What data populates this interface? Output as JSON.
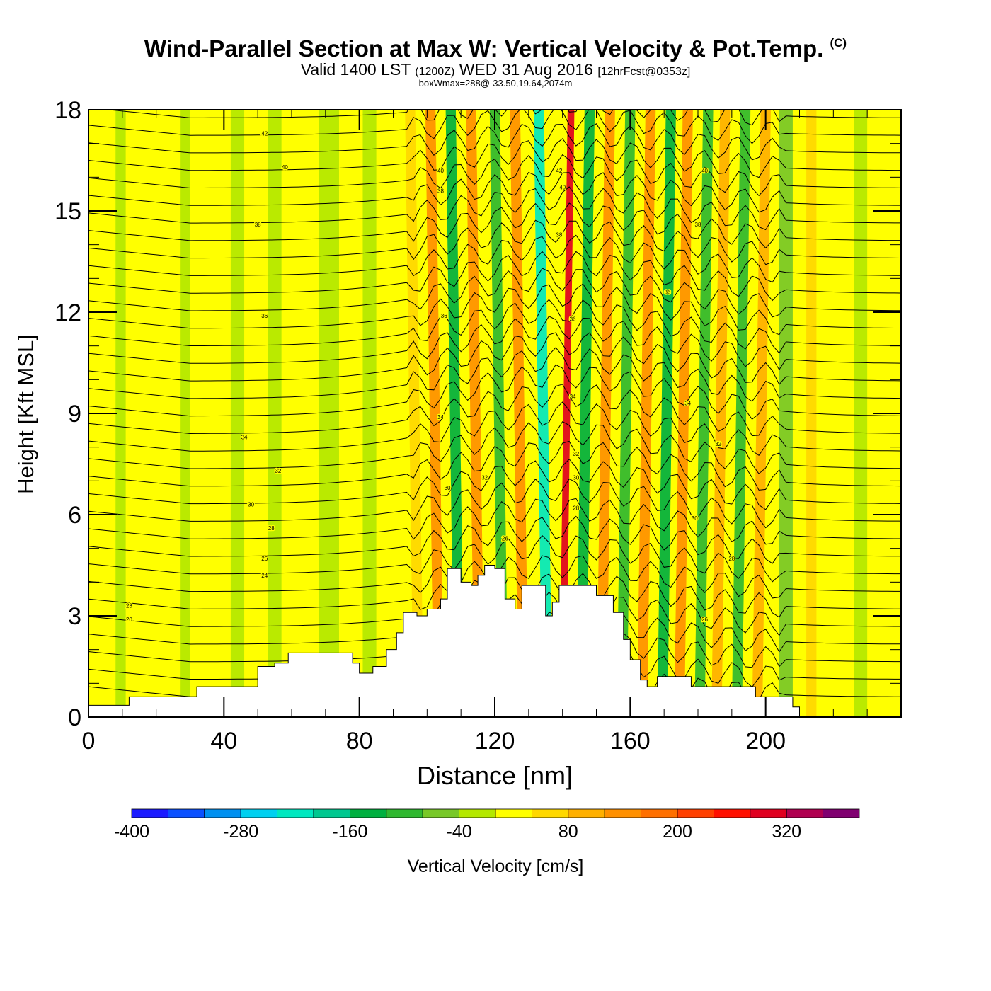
{
  "header": {
    "title": "Wind-Parallel Section at Max W: Vertical Velocity & Pot.Temp.",
    "copyright_mark": "(C)",
    "valid_prefix": "Valid 1400 LST",
    "utc": "(1200Z)",
    "valid_date": "WED 31 Aug 2016",
    "forecast": "[12hrFcst@0353z]",
    "box_info": "boxWmax=288@-33.50,19.64,2074m"
  },
  "chart_data": {
    "type": "heatmap",
    "title": "Wind-Parallel Section at Max W: Vertical Velocity & Pot.Temp.",
    "xlabel": "Distance [nm]",
    "ylabel": "Height [Kft MSL]",
    "xlim": [
      0,
      240
    ],
    "ylim": [
      0,
      18
    ],
    "x_ticks": [
      0,
      40,
      80,
      120,
      160,
      200
    ],
    "y_ticks": [
      0,
      3,
      6,
      9,
      12,
      15,
      18
    ],
    "colorbar": {
      "label": "Vertical Velocity [cm/s]",
      "min": -400,
      "max": 400,
      "step": 40,
      "tick_labels": [
        -400,
        -280,
        -160,
        -40,
        80,
        200,
        320
      ],
      "colors": [
        "#1a1aff",
        "#0a50ff",
        "#0090f0",
        "#00d0f0",
        "#00e8c0",
        "#00c890",
        "#00b040",
        "#30b830",
        "#78c828",
        "#b4e800",
        "#ffff00",
        "#ffd800",
        "#ffb000",
        "#ff9000",
        "#ff7000",
        "#ff4000",
        "#ff1000",
        "#e00020",
        "#b00050",
        "#800070"
      ]
    },
    "terrain": [
      [
        0,
        0.35
      ],
      [
        10,
        0.35
      ],
      [
        12,
        0.6
      ],
      [
        30,
        0.6
      ],
      [
        32,
        0.9
      ],
      [
        46,
        0.9
      ],
      [
        50,
        1.5
      ],
      [
        55,
        1.6
      ],
      [
        59,
        1.9
      ],
      [
        75,
        1.9
      ],
      [
        78,
        1.6
      ],
      [
        80,
        1.3
      ],
      [
        84,
        1.5
      ],
      [
        88,
        2.0
      ],
      [
        91,
        2.5
      ],
      [
        93,
        3.1
      ],
      [
        97,
        3.0
      ],
      [
        100,
        3.2
      ],
      [
        104,
        3.5
      ],
      [
        106,
        4.4
      ],
      [
        110,
        4.0
      ],
      [
        113,
        3.9
      ],
      [
        115,
        4.2
      ],
      [
        117,
        4.5
      ],
      [
        120,
        4.4
      ],
      [
        123,
        3.5
      ],
      [
        126,
        3.2
      ],
      [
        128,
        3.9
      ],
      [
        132,
        3.9
      ],
      [
        135,
        3.0
      ],
      [
        137,
        3.4
      ],
      [
        139,
        3.9
      ],
      [
        145,
        3.9
      ],
      [
        150,
        3.6
      ],
      [
        155,
        3.1
      ],
      [
        158,
        2.3
      ],
      [
        160,
        1.7
      ],
      [
        163,
        1.1
      ],
      [
        165,
        0.9
      ],
      [
        168,
        1.2
      ],
      [
        175,
        1.2
      ],
      [
        178,
        0.9
      ],
      [
        186,
        0.9
      ],
      [
        195,
        0.9
      ],
      [
        197,
        0.6
      ],
      [
        207,
        0.6
      ],
      [
        208,
        0.3
      ],
      [
        210,
        0.3
      ]
    ],
    "vertical_velocity_bands": [
      {
        "x": 8,
        "w": 3,
        "value": -20
      },
      {
        "x": 27,
        "w": 3,
        "value": -20
      },
      {
        "x": 42,
        "w": 4,
        "value": -40
      },
      {
        "x": 53,
        "w": 4,
        "value": -40
      },
      {
        "x": 68,
        "w": 6,
        "value": -40
      },
      {
        "x": 81,
        "w": 4,
        "value": -40
      },
      {
        "x": 96,
        "w": 3,
        "value": 60
      },
      {
        "x": 102,
        "w": 3,
        "value": 120
      },
      {
        "x": 108,
        "w": 3,
        "value": -160
      },
      {
        "x": 114,
        "w": 3,
        "value": 140
      },
      {
        "x": 121,
        "w": 3,
        "value": -120
      },
      {
        "x": 127,
        "w": 3,
        "value": 120
      },
      {
        "x": 134,
        "w": 3,
        "value": -240
      },
      {
        "x": 139,
        "w": 2,
        "value": 288
      },
      {
        "x": 144,
        "w": 3,
        "value": -160
      },
      {
        "x": 150,
        "w": 3,
        "value": 120
      },
      {
        "x": 156,
        "w": 3,
        "value": -120
      },
      {
        "x": 162,
        "w": 3,
        "value": 140
      },
      {
        "x": 168,
        "w": 3,
        "value": -140
      },
      {
        "x": 173,
        "w": 3,
        "value": 120
      },
      {
        "x": 179,
        "w": 3,
        "value": -100
      },
      {
        "x": 184,
        "w": 3,
        "value": 100
      },
      {
        "x": 190,
        "w": 3,
        "value": -100
      },
      {
        "x": 196,
        "w": 3,
        "value": 80
      },
      {
        "x": 204,
        "w": 4,
        "value": -60
      },
      {
        "x": 212,
        "w": 3,
        "value": 60
      },
      {
        "x": 226,
        "w": 4,
        "value": -40
      }
    ],
    "potential_temperature_labels": [
      {
        "x": 12,
        "y": 3.3,
        "text": "23"
      },
      {
        "x": 12,
        "y": 2.9,
        "text": "20"
      },
      {
        "x": 52,
        "y": 4.2,
        "text": "24"
      },
      {
        "x": 52,
        "y": 4.7,
        "text": "26"
      },
      {
        "x": 54,
        "y": 5.6,
        "text": "28"
      },
      {
        "x": 48,
        "y": 6.3,
        "text": "30"
      },
      {
        "x": 56,
        "y": 7.3,
        "text": "32"
      },
      {
        "x": 46,
        "y": 8.3,
        "text": "34"
      },
      {
        "x": 52,
        "y": 11.9,
        "text": "36"
      },
      {
        "x": 50,
        "y": 14.6,
        "text": "38"
      },
      {
        "x": 58,
        "y": 16.3,
        "text": "40"
      },
      {
        "x": 52,
        "y": 17.3,
        "text": "42"
      },
      {
        "x": 104,
        "y": 16.2,
        "text": "40"
      },
      {
        "x": 104,
        "y": 15.6,
        "text": "38"
      },
      {
        "x": 105,
        "y": 11.9,
        "text": "36"
      },
      {
        "x": 104,
        "y": 8.9,
        "text": "34"
      },
      {
        "x": 106,
        "y": 6.8,
        "text": "30"
      },
      {
        "x": 117,
        "y": 7.1,
        "text": "32"
      },
      {
        "x": 123,
        "y": 5.3,
        "text": "26"
      },
      {
        "x": 139,
        "y": 16.2,
        "text": "42"
      },
      {
        "x": 140,
        "y": 15.7,
        "text": "40"
      },
      {
        "x": 139,
        "y": 14.3,
        "text": "38"
      },
      {
        "x": 143,
        "y": 11.8,
        "text": "36"
      },
      {
        "x": 143,
        "y": 9.5,
        "text": "34"
      },
      {
        "x": 144,
        "y": 7.8,
        "text": "32"
      },
      {
        "x": 144,
        "y": 7.1,
        "text": "30"
      },
      {
        "x": 144,
        "y": 6.2,
        "text": "28"
      },
      {
        "x": 182,
        "y": 16.2,
        "text": "40"
      },
      {
        "x": 180,
        "y": 14.6,
        "text": "38"
      },
      {
        "x": 171,
        "y": 12.6,
        "text": "36"
      },
      {
        "x": 177,
        "y": 9.3,
        "text": "34"
      },
      {
        "x": 186,
        "y": 8.1,
        "text": "32"
      },
      {
        "x": 179,
        "y": 5.9,
        "text": "30"
      },
      {
        "x": 190,
        "y": 4.7,
        "text": "28"
      },
      {
        "x": 182,
        "y": 2.9,
        "text": "26"
      }
    ]
  }
}
